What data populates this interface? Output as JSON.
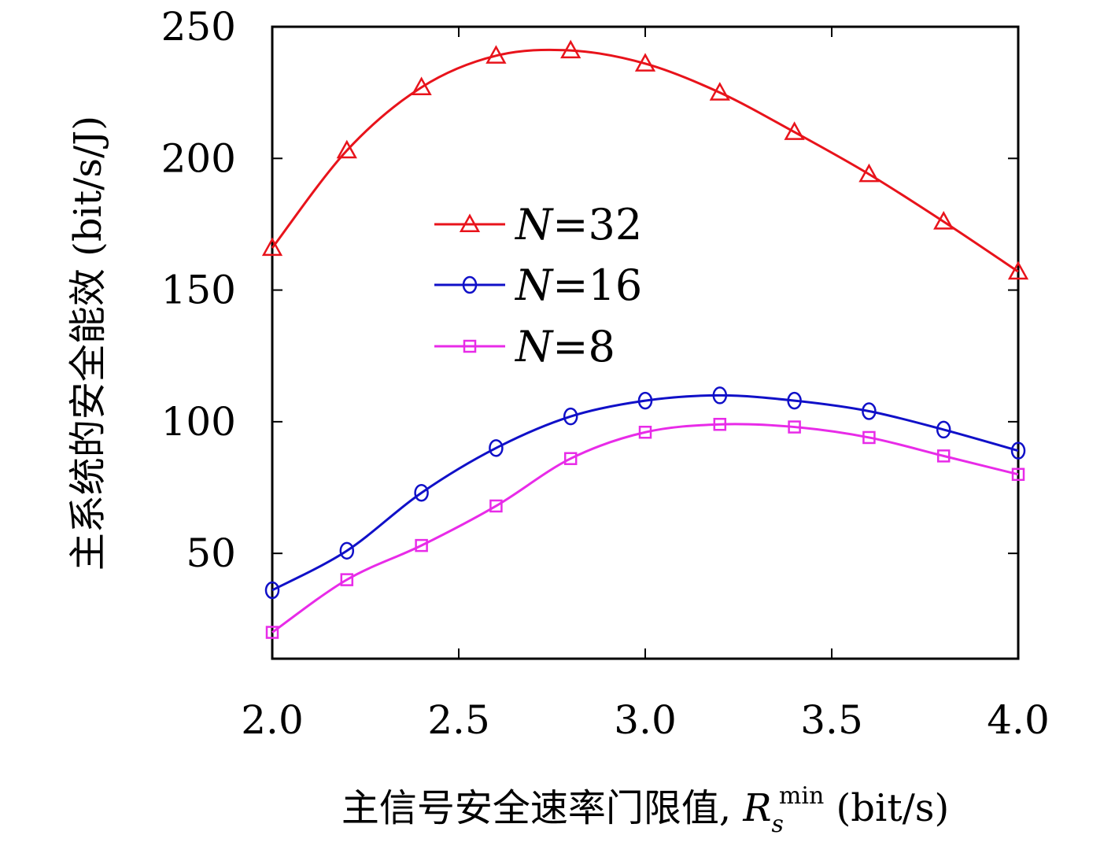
{
  "chart_data": {
    "type": "line",
    "title": "",
    "xlabel": "主信号安全速率门限值, ",
    "xlabel_symbol": "R",
    "xlabel_symbol_sub": "s",
    "xlabel_symbol_sup": "min",
    "xlabel_unit": " (bit/s)",
    "ylabel": "主系统的安全能效 (bit/s/J)",
    "xlim": [
      2.0,
      4.0
    ],
    "ylim": [
      10,
      250
    ],
    "xticks": [
      "2.0",
      "2.5",
      "3.0",
      "3.5",
      "4.0"
    ],
    "xtick_values": [
      2.0,
      2.5,
      3.0,
      3.5,
      4.0
    ],
    "yticks": [
      "50",
      "100",
      "150",
      "200",
      "250"
    ],
    "ytick_values": [
      50,
      100,
      150,
      200,
      250
    ],
    "grid": false,
    "legend_position": "center-left",
    "x": [
      2.0,
      2.2,
      2.4,
      2.6,
      2.8,
      3.0,
      3.2,
      3.4,
      3.6,
      3.8,
      4.0
    ],
    "series": [
      {
        "name_var": "N",
        "name_val": "=32",
        "color": "#e8131b",
        "marker": "triangle",
        "values": [
          166,
          203,
          227,
          239,
          241,
          236,
          225,
          210,
          194,
          176,
          157
        ]
      },
      {
        "name_var": "N",
        "name_val": "=16",
        "color": "#1010c8",
        "marker": "circle",
        "values": [
          36,
          51,
          73,
          90,
          102,
          108,
          110,
          108,
          104,
          97,
          89
        ]
      },
      {
        "name_var": "N",
        "name_val": "=8",
        "color": "#e82be8",
        "marker": "square",
        "values": [
          20,
          40,
          53,
          68,
          86,
          96,
          99,
          98,
          94,
          87,
          80
        ]
      }
    ]
  }
}
